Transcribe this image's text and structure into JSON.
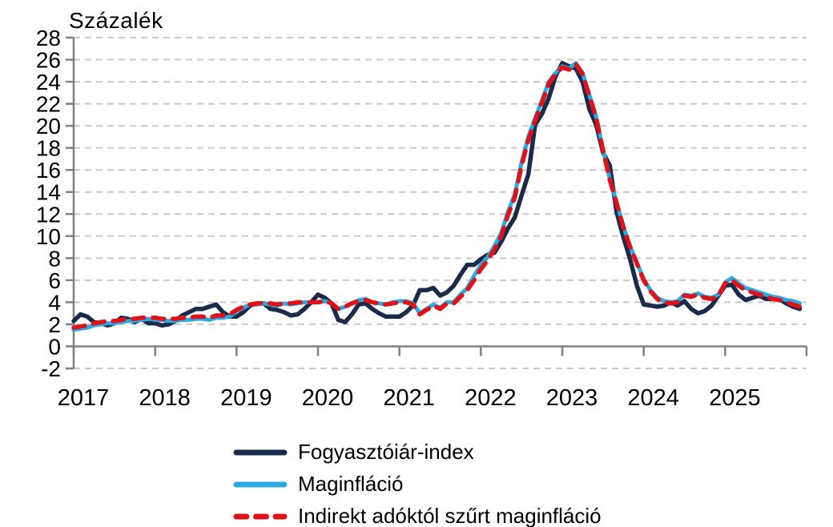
{
  "figure": {
    "unit_label": "Százalék"
  },
  "chart_data": {
    "type": "line",
    "title": "",
    "unit_label": "Százalék",
    "xlabel": "",
    "ylabel": "Százalék",
    "x_frequency": "monthly",
    "x_range": "2017-01 to 2025-12",
    "x_tick_labels": [
      "2017",
      "2018",
      "2019",
      "2020",
      "2021",
      "2022",
      "2023",
      "2024",
      "2025"
    ],
    "ylim": [
      -2,
      28
    ],
    "ytick_step": 2,
    "grid": "horizontal-dashed",
    "grid_color": "#c9c9c9",
    "axis_color": "#808080",
    "text_color": "#000000",
    "legend_position": "bottom",
    "series": [
      {
        "id": "cpi",
        "name": "Fogyasztóiár-index",
        "color": "#1a2b49",
        "line_style": "solid",
        "line_width": 5.5,
        "values": [
          2.3,
          2.9,
          2.7,
          2.2,
          2.1,
          1.9,
          2.1,
          2.6,
          2.5,
          2.2,
          2.5,
          2.1,
          2.1,
          1.9,
          2.0,
          2.3,
          2.8,
          3.1,
          3.4,
          3.4,
          3.6,
          3.8,
          3.1,
          2.7,
          2.7,
          3.1,
          3.7,
          3.9,
          3.9,
          3.4,
          3.3,
          3.1,
          2.8,
          2.9,
          3.4,
          4.0,
          4.7,
          4.4,
          3.9,
          2.4,
          2.2,
          2.9,
          3.8,
          3.9,
          3.4,
          3.0,
          2.7,
          2.7,
          2.7,
          3.1,
          3.7,
          5.1,
          5.1,
          5.3,
          4.6,
          4.9,
          5.5,
          6.5,
          7.4,
          7.4,
          7.9,
          8.3,
          8.5,
          9.5,
          10.7,
          11.7,
          13.7,
          15.6,
          20.1,
          21.1,
          22.5,
          24.5,
          25.7,
          25.4,
          25.2,
          24.0,
          21.5,
          20.1,
          17.6,
          16.4,
          12.2,
          9.9,
          7.9,
          5.5,
          3.8,
          3.7,
          3.6,
          3.7,
          4.0,
          3.7,
          4.1,
          3.4,
          3.0,
          3.2,
          3.7,
          4.6,
          5.5,
          5.6,
          4.7,
          4.2,
          4.4,
          4.6,
          4.3,
          4.3,
          4.3,
          3.9,
          3.6,
          3.4
        ]
      },
      {
        "id": "core",
        "name": "Maginfláció",
        "color": "#29abe2",
        "line_style": "solid",
        "line_width": 5,
        "values": [
          1.5,
          1.6,
          1.7,
          1.9,
          2.0,
          2.1,
          2.1,
          2.2,
          2.3,
          2.3,
          2.4,
          2.5,
          2.4,
          2.4,
          2.3,
          2.3,
          2.4,
          2.4,
          2.5,
          2.5,
          2.4,
          2.6,
          2.6,
          2.7,
          3.2,
          3.5,
          3.8,
          3.8,
          3.9,
          3.8,
          3.7,
          3.9,
          3.8,
          3.9,
          4.0,
          4.0,
          4.0,
          4.1,
          3.9,
          3.4,
          3.6,
          3.9,
          4.2,
          4.3,
          4.0,
          3.9,
          3.8,
          4.0,
          4.1,
          4.1,
          3.9,
          3.0,
          3.4,
          3.8,
          3.5,
          4.0,
          4.0,
          4.7,
          5.3,
          6.4,
          7.4,
          8.1,
          9.1,
          10.3,
          12.2,
          13.8,
          16.7,
          19.0,
          20.7,
          22.3,
          24.0,
          24.8,
          25.4,
          25.2,
          25.7,
          24.8,
          22.8,
          20.8,
          17.9,
          15.2,
          13.1,
          10.9,
          9.1,
          7.6,
          6.1,
          5.1,
          4.4,
          4.1,
          4.0,
          4.1,
          4.7,
          4.6,
          4.8,
          4.5,
          4.4,
          4.7,
          5.8,
          6.2,
          5.7,
          5.3,
          5.1,
          4.9,
          4.7,
          4.5,
          4.4,
          4.2,
          4.1,
          3.9
        ]
      },
      {
        "id": "tax-filtered-core",
        "name": "Indirekt adóktól szűrt maginfláció",
        "color": "#df121a",
        "line_style": "dashed",
        "line_width": 5.5,
        "values": [
          1.7,
          1.8,
          1.9,
          2.1,
          2.2,
          2.3,
          2.3,
          2.4,
          2.5,
          2.5,
          2.6,
          2.6,
          2.6,
          2.5,
          2.5,
          2.5,
          2.6,
          2.6,
          2.7,
          2.7,
          2.6,
          2.8,
          2.8,
          2.9,
          3.3,
          3.6,
          3.8,
          3.9,
          3.9,
          3.9,
          3.8,
          3.9,
          3.9,
          4.0,
          4.0,
          4.0,
          4.0,
          4.1,
          3.9,
          3.4,
          3.6,
          3.9,
          4.1,
          4.2,
          4.0,
          3.9,
          3.8,
          3.9,
          4.0,
          4.0,
          3.8,
          2.9,
          3.3,
          3.7,
          3.4,
          3.9,
          3.9,
          4.5,
          5.1,
          6.0,
          7.0,
          7.8,
          8.8,
          10.0,
          11.9,
          13.5,
          16.4,
          18.7,
          20.5,
          22.1,
          23.8,
          24.7,
          25.3,
          25.1,
          25.6,
          24.7,
          22.7,
          20.7,
          17.8,
          15.1,
          13.0,
          10.8,
          9.0,
          7.5,
          6.0,
          5.0,
          4.3,
          4.0,
          3.9,
          4.0,
          4.6,
          4.5,
          4.7,
          4.4,
          4.3,
          4.6,
          5.7,
          6.0,
          5.5,
          5.1,
          4.9,
          4.7,
          4.5,
          4.3,
          4.2,
          4.0,
          3.8,
          3.6
        ]
      }
    ]
  }
}
